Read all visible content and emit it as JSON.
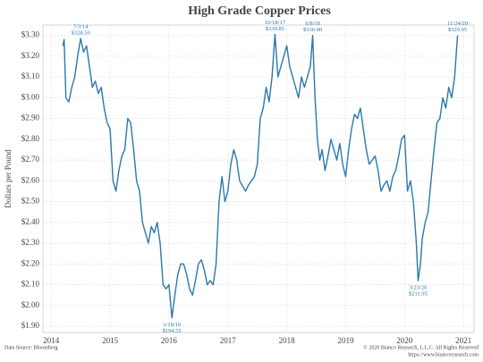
{
  "chart_data": {
    "type": "line",
    "title": "High Grade Copper Prices",
    "y_label": "Dollars per Pound",
    "source": "Data Source: Bloomberg",
    "copyright": "© 2020 Bianco Research, L.L.C. All Rights Reserved",
    "url": "https://www.biancoresearch.com",
    "xlim": [
      2013.86,
      2021.18
    ],
    "xticks": [
      2014,
      2015,
      2016,
      2017,
      2018,
      2019,
      2020,
      2021
    ],
    "ylim": [
      1.87,
      3.35
    ],
    "yticks": [
      {
        "value": 1.9,
        "label": "$1.90"
      },
      {
        "value": 2.0,
        "label": "$2.00"
      },
      {
        "value": 2.1,
        "label": "$2.10"
      },
      {
        "value": 2.2,
        "label": "$2.20"
      },
      {
        "value": 2.3,
        "label": "$2.30"
      },
      {
        "value": 2.4,
        "label": "$2.40"
      },
      {
        "value": 2.5,
        "label": "$2.50"
      },
      {
        "value": 2.6,
        "label": "$2.60"
      },
      {
        "value": 2.7,
        "label": "$2.70"
      },
      {
        "value": 2.8,
        "label": "$2.80"
      },
      {
        "value": 2.9,
        "label": "$2.90"
      },
      {
        "value": 3.0,
        "label": "$3.00"
      },
      {
        "value": 3.1,
        "label": "$3.10"
      },
      {
        "value": 3.2,
        "label": "$3.20"
      },
      {
        "value": 3.3,
        "label": "$3.30"
      }
    ],
    "grid": true,
    "color": "#2b78ad",
    "x": [
      2014.2,
      2014.22,
      2014.25,
      2014.3,
      2014.35,
      2014.4,
      2014.45,
      2014.5,
      2014.55,
      2014.6,
      2014.65,
      2014.7,
      2014.75,
      2014.8,
      2014.85,
      2014.9,
      2014.95,
      2015.0,
      2015.05,
      2015.1,
      2015.15,
      2015.2,
      2015.25,
      2015.3,
      2015.35,
      2015.4,
      2015.45,
      2015.5,
      2015.55,
      2015.6,
      2015.65,
      2015.7,
      2015.75,
      2015.8,
      2015.85,
      2015.9,
      2015.95,
      2016.0,
      2016.05,
      2016.1,
      2016.15,
      2016.2,
      2016.25,
      2016.3,
      2016.35,
      2016.4,
      2016.45,
      2016.5,
      2016.55,
      2016.6,
      2016.65,
      2016.7,
      2016.75,
      2016.8,
      2016.85,
      2016.9,
      2016.95,
      2017.0,
      2017.05,
      2017.1,
      2017.15,
      2017.2,
      2017.3,
      2017.35,
      2017.4,
      2017.45,
      2017.5,
      2017.55,
      2017.6,
      2017.65,
      2017.7,
      2017.75,
      2017.8,
      2017.85,
      2017.9,
      2017.95,
      2018.0,
      2018.05,
      2018.1,
      2018.15,
      2018.2,
      2018.25,
      2018.3,
      2018.35,
      2018.4,
      2018.44,
      2018.48,
      2018.52,
      2018.56,
      2018.6,
      2018.65,
      2018.7,
      2018.75,
      2018.8,
      2018.85,
      2018.9,
      2018.95,
      2019.0,
      2019.05,
      2019.1,
      2019.15,
      2019.2,
      2019.25,
      2019.3,
      2019.35,
      2019.4,
      2019.45,
      2019.5,
      2019.55,
      2019.6,
      2019.65,
      2019.7,
      2019.75,
      2019.8,
      2019.85,
      2019.9,
      2019.95,
      2020.0,
      2020.05,
      2020.1,
      2020.15,
      2020.2,
      2020.23,
      2020.27,
      2020.3,
      2020.35,
      2020.4,
      2020.45,
      2020.5,
      2020.55,
      2020.6,
      2020.65,
      2020.7,
      2020.75,
      2020.8,
      2020.85,
      2020.9
    ],
    "values": [
      3.25,
      3.28,
      3.0,
      2.98,
      3.05,
      3.1,
      3.2,
      3.285,
      3.22,
      3.25,
      3.15,
      3.05,
      3.08,
      3.02,
      3.05,
      2.95,
      2.88,
      2.85,
      2.6,
      2.55,
      2.65,
      2.72,
      2.75,
      2.9,
      2.88,
      2.75,
      2.6,
      2.55,
      2.4,
      2.35,
      2.3,
      2.38,
      2.35,
      2.4,
      2.3,
      2.1,
      2.08,
      2.1,
      1.94,
      2.05,
      2.15,
      2.2,
      2.2,
      2.15,
      2.08,
      2.05,
      2.12,
      2.2,
      2.22,
      2.17,
      2.1,
      2.12,
      2.1,
      2.2,
      2.5,
      2.62,
      2.5,
      2.55,
      2.68,
      2.75,
      2.7,
      2.6,
      2.55,
      2.58,
      2.6,
      2.62,
      2.68,
      2.9,
      2.95,
      3.05,
      2.98,
      3.1,
      3.305,
      3.1,
      3.15,
      3.2,
      3.25,
      3.15,
      3.1,
      3.05,
      3.0,
      3.1,
      3.05,
      3.1,
      3.15,
      3.3,
      3.0,
      2.8,
      2.7,
      2.75,
      2.65,
      2.72,
      2.8,
      2.75,
      2.7,
      2.78,
      2.68,
      2.62,
      2.75,
      2.85,
      2.92,
      2.9,
      2.95,
      2.85,
      2.75,
      2.68,
      2.7,
      2.72,
      2.65,
      2.55,
      2.58,
      2.6,
      2.55,
      2.62,
      2.65,
      2.72,
      2.8,
      2.82,
      2.55,
      2.6,
      2.5,
      2.3,
      2.12,
      2.2,
      2.32,
      2.4,
      2.45,
      2.6,
      2.75,
      2.88,
      2.9,
      3.0,
      2.95,
      3.05,
      3.0,
      3.1,
      3.3
    ],
    "annotations": [
      {
        "date": "7/3/14",
        "price": "$328.50",
        "x": 2014.5,
        "y": 3.285
      },
      {
        "date": "10/18/17",
        "price": "$330.85",
        "x": 2017.8,
        "y": 3.305
      },
      {
        "date": "6/8/18",
        "price": "$330.00",
        "x": 2018.44,
        "y": 3.3
      },
      {
        "date": "11/24/20",
        "price": "$329.95",
        "x": 2020.9,
        "y": 3.3
      },
      {
        "date": "1/18/16",
        "price": "$194.55",
        "x": 2016.05,
        "y": 1.94
      },
      {
        "date": "3/23/20",
        "price": "$211.95",
        "x": 2020.23,
        "y": 2.12
      }
    ]
  }
}
